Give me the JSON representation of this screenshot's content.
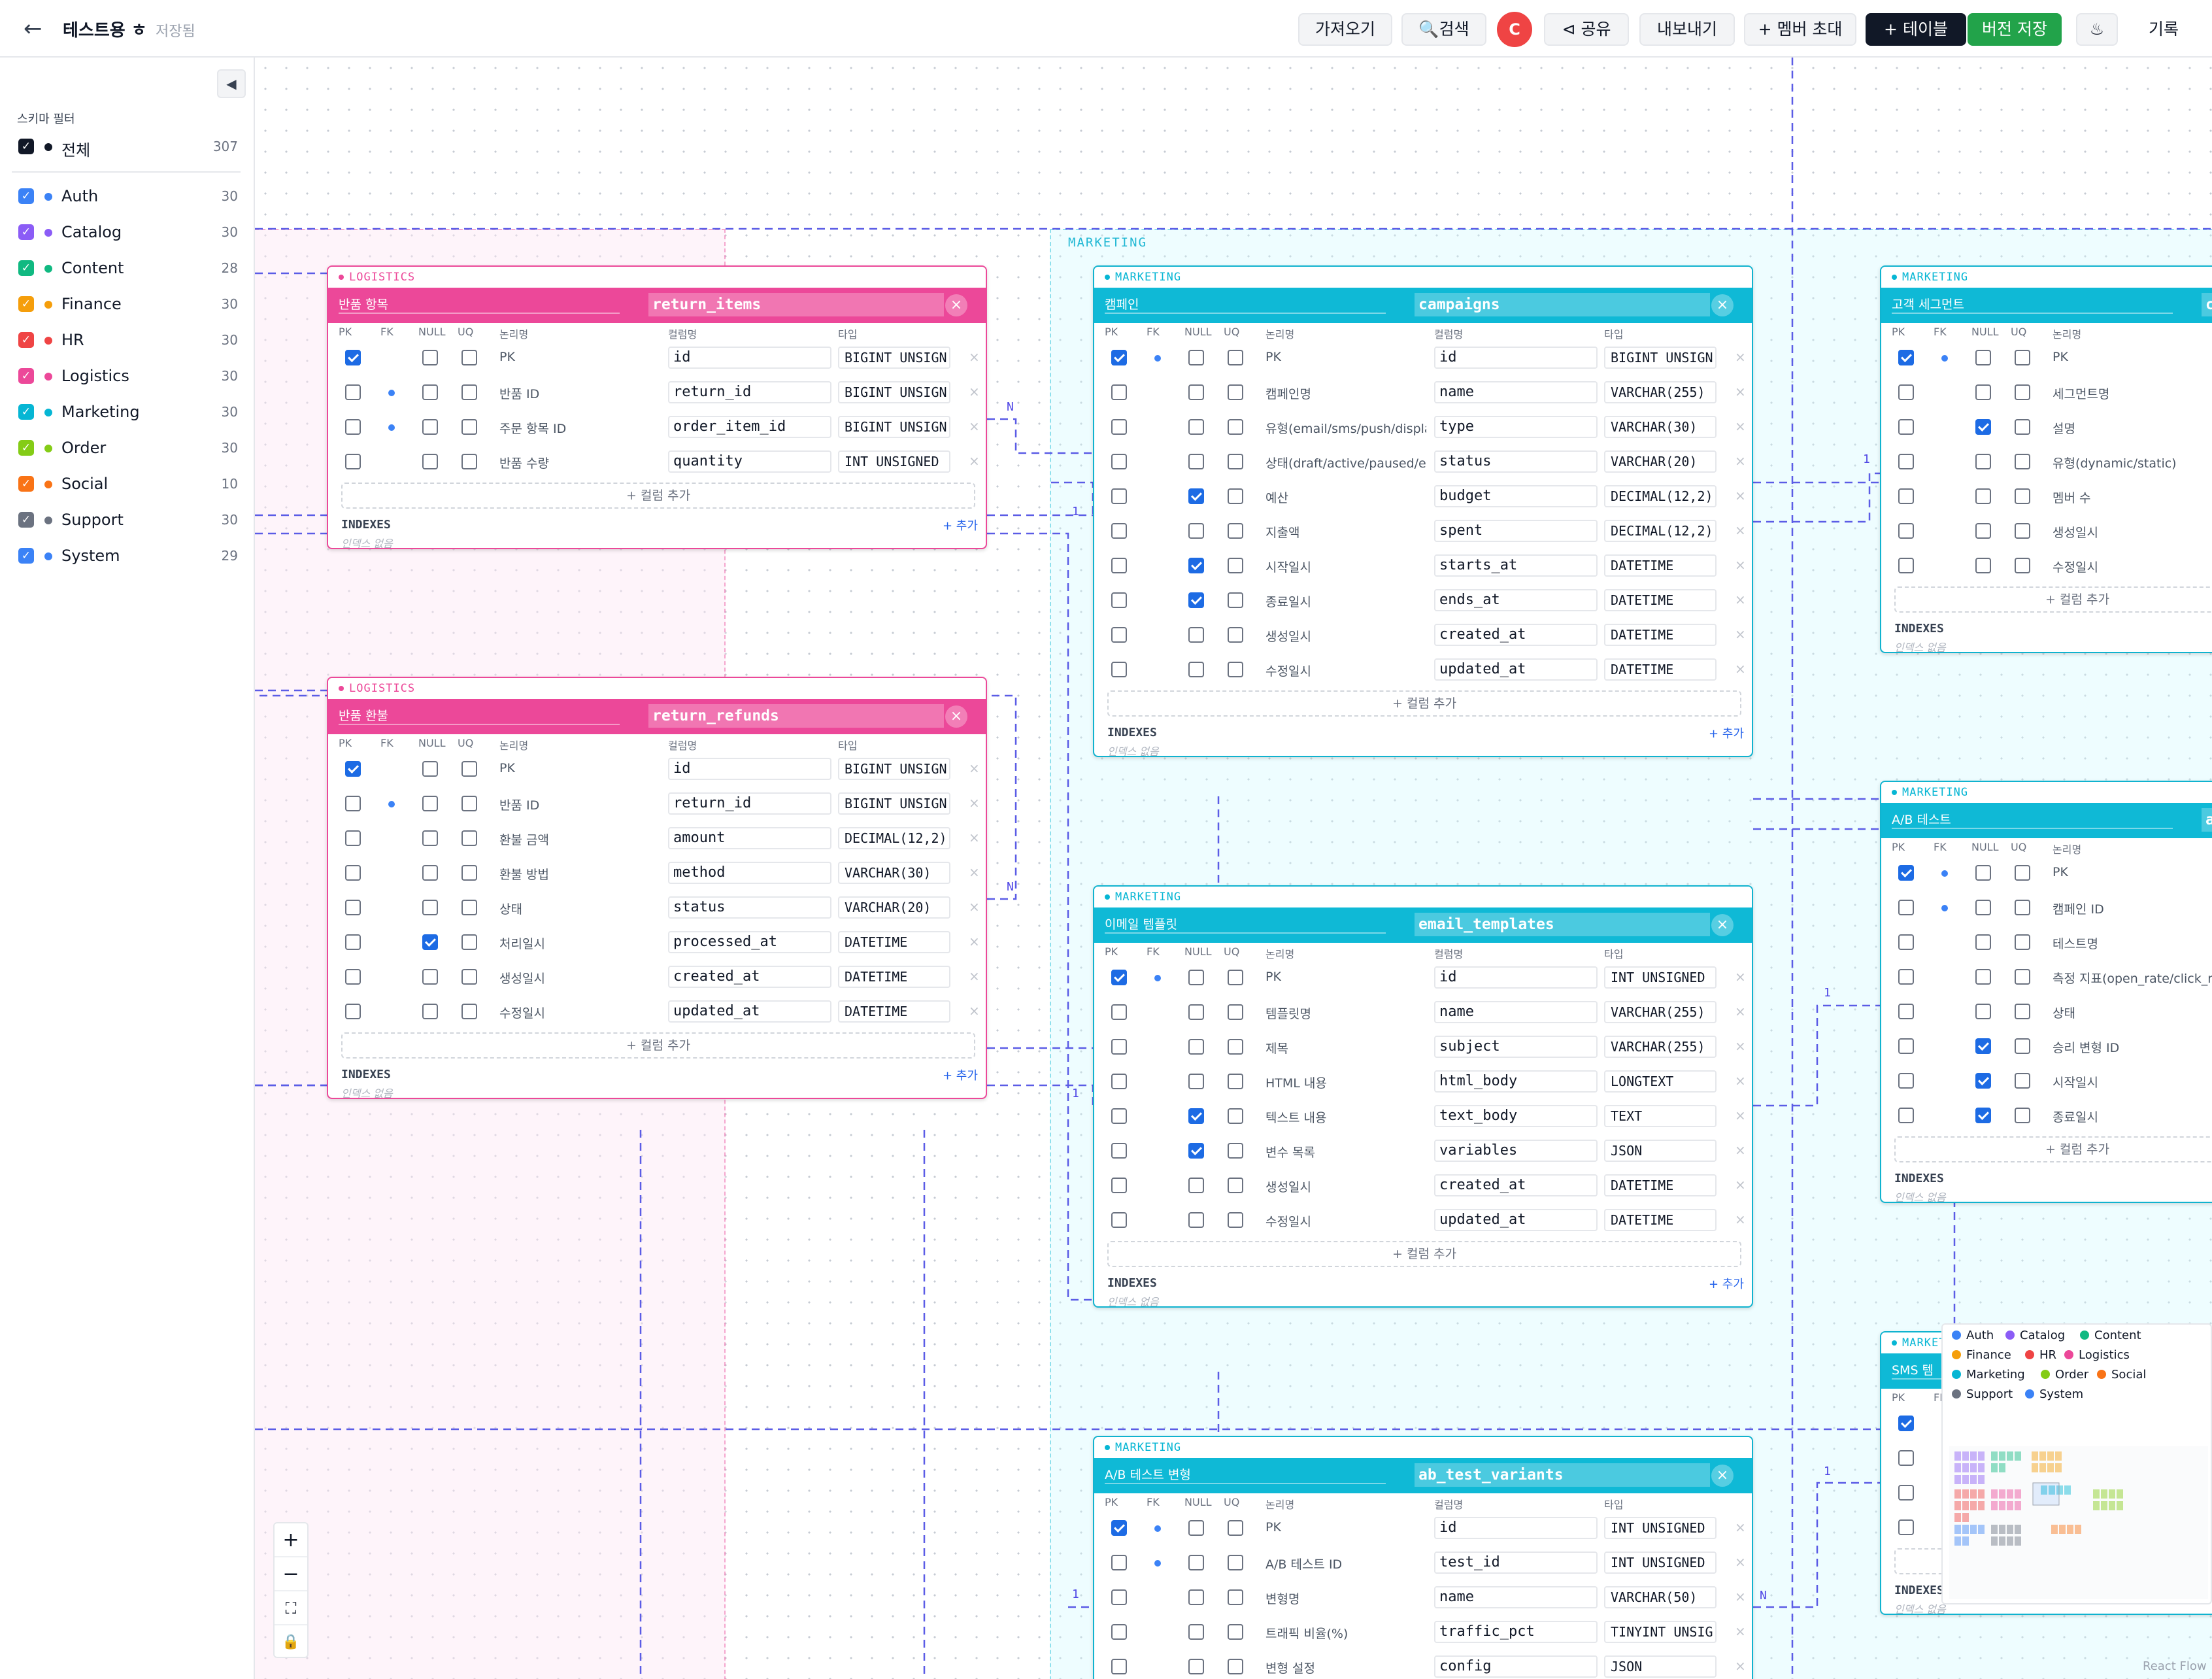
{
  "header": {
    "title": "테스트용",
    "title_suffix": "ㅎ",
    "status": "저장됨",
    "buttons": {
      "import": "가져오기",
      "search": "검색",
      "avatar": "C",
      "share": "공유",
      "export": "내보내기",
      "invite": "+ 멤버 초대",
      "add_table": "+ 테이블",
      "save_version": "버전 저장",
      "history": "기록"
    }
  },
  "sidebar": {
    "title": "스키마 필터",
    "all": {
      "label": "전체",
      "count": "307"
    },
    "items": [
      {
        "label": "Auth",
        "count": "30",
        "color": "#3b82f6"
      },
      {
        "label": "Catalog",
        "count": "30",
        "color": "#8b5cf6"
      },
      {
        "label": "Content",
        "count": "28",
        "color": "#10b981"
      },
      {
        "label": "Finance",
        "count": "30",
        "color": "#f59e0b"
      },
      {
        "label": "HR",
        "count": "30",
        "color": "#ef4444"
      },
      {
        "label": "Logistics",
        "count": "30",
        "color": "#ec4899"
      },
      {
        "label": "Marketing",
        "count": "30",
        "color": "#06b6d4"
      },
      {
        "label": "Order",
        "count": "30",
        "color": "#84cc16"
      },
      {
        "label": "Social",
        "count": "10",
        "color": "#f97316"
      },
      {
        "label": "Support",
        "count": "30",
        "color": "#6b7280"
      },
      {
        "label": "System",
        "count": "29",
        "color": "#3b82f6"
      }
    ]
  },
  "canvas": {
    "group_marketing": "MARKETING",
    "col_headers": {
      "pk": "PK",
      "fk": "FK",
      "null": "NULL",
      "uq": "UQ",
      "logical": "논리명",
      "physical": "컬럼명",
      "type": "타입"
    },
    "add_column": "+ 컬럼 추가",
    "indexes": "INDEXES",
    "index_add": "+ 추가",
    "index_none": "인덱스 없음",
    "rel_one": "1",
    "rel_many": "N",
    "tables": [
      {
        "id": "return_items",
        "schema": "LOGISTICS",
        "logical": "반품 항목",
        "name": "return_items",
        "columns": [
          {
            "pk": true,
            "fk": false,
            "nul": false,
            "uq": false,
            "logical": "PK",
            "name": "id",
            "type": "BIGINT UNSIGN"
          },
          {
            "pk": false,
            "fk": true,
            "nul": false,
            "uq": false,
            "logical": "반품 ID",
            "name": "return_id",
            "type": "BIGINT UNSIGN"
          },
          {
            "pk": false,
            "fk": true,
            "nul": false,
            "uq": false,
            "logical": "주문 항목 ID",
            "name": "order_item_id",
            "type": "BIGINT UNSIGN"
          },
          {
            "pk": false,
            "fk": false,
            "nul": false,
            "uq": false,
            "logical": "반품 수량",
            "name": "quantity",
            "type": "INT UNSIGNED"
          }
        ]
      },
      {
        "id": "return_refunds",
        "schema": "LOGISTICS",
        "logical": "반품 환불",
        "name": "return_refunds",
        "columns": [
          {
            "pk": true,
            "fk": false,
            "nul": false,
            "uq": false,
            "logical": "PK",
            "name": "id",
            "type": "BIGINT UNSIGN"
          },
          {
            "pk": false,
            "fk": true,
            "nul": false,
            "uq": false,
            "logical": "반품 ID",
            "name": "return_id",
            "type": "BIGINT UNSIGN"
          },
          {
            "pk": false,
            "fk": false,
            "nul": false,
            "uq": false,
            "logical": "환불 금액",
            "name": "amount",
            "type": "DECIMAL(12,2)"
          },
          {
            "pk": false,
            "fk": false,
            "nul": false,
            "uq": false,
            "logical": "환불 방법",
            "name": "method",
            "type": "VARCHAR(30)"
          },
          {
            "pk": false,
            "fk": false,
            "nul": false,
            "uq": false,
            "logical": "상태",
            "name": "status",
            "type": "VARCHAR(20)"
          },
          {
            "pk": false,
            "fk": false,
            "nul": true,
            "uq": false,
            "logical": "처리일시",
            "name": "processed_at",
            "type": "DATETIME"
          },
          {
            "pk": false,
            "fk": false,
            "nul": false,
            "uq": false,
            "logical": "생성일시",
            "name": "created_at",
            "type": "DATETIME"
          },
          {
            "pk": false,
            "fk": false,
            "nul": false,
            "uq": false,
            "logical": "수정일시",
            "name": "updated_at",
            "type": "DATETIME"
          }
        ]
      },
      {
        "id": "campaigns",
        "schema": "MARKETING",
        "logical": "캠페인",
        "name": "campaigns",
        "columns": [
          {
            "pk": true,
            "fk": true,
            "nul": false,
            "uq": false,
            "logical": "PK",
            "name": "id",
            "type": "BIGINT UNSIGN"
          },
          {
            "pk": false,
            "fk": false,
            "nul": false,
            "uq": false,
            "logical": "캠페인명",
            "name": "name",
            "type": "VARCHAR(255)"
          },
          {
            "pk": false,
            "fk": false,
            "nul": false,
            "uq": false,
            "logical": "유형(email/sms/push/displa",
            "name": "type",
            "type": "VARCHAR(30)"
          },
          {
            "pk": false,
            "fk": false,
            "nul": false,
            "uq": false,
            "logical": "상태(draft/active/paused/er",
            "name": "status",
            "type": "VARCHAR(20)"
          },
          {
            "pk": false,
            "fk": false,
            "nul": true,
            "uq": false,
            "logical": "예산",
            "name": "budget",
            "type": "DECIMAL(12,2)"
          },
          {
            "pk": false,
            "fk": false,
            "nul": false,
            "uq": false,
            "logical": "지출액",
            "name": "spent",
            "type": "DECIMAL(12,2)"
          },
          {
            "pk": false,
            "fk": false,
            "nul": true,
            "uq": false,
            "logical": "시작일시",
            "name": "starts_at",
            "type": "DATETIME"
          },
          {
            "pk": false,
            "fk": false,
            "nul": true,
            "uq": false,
            "logical": "종료일시",
            "name": "ends_at",
            "type": "DATETIME"
          },
          {
            "pk": false,
            "fk": false,
            "nul": false,
            "uq": false,
            "logical": "생성일시",
            "name": "created_at",
            "type": "DATETIME"
          },
          {
            "pk": false,
            "fk": false,
            "nul": false,
            "uq": false,
            "logical": "수정일시",
            "name": "updated_at",
            "type": "DATETIME"
          }
        ]
      },
      {
        "id": "email_templates",
        "schema": "MARKETING",
        "logical": "이메일 템플릿",
        "name": "email_templates",
        "columns": [
          {
            "pk": true,
            "fk": true,
            "nul": false,
            "uq": false,
            "logical": "PK",
            "name": "id",
            "type": "INT UNSIGNED"
          },
          {
            "pk": false,
            "fk": false,
            "nul": false,
            "uq": false,
            "logical": "템플릿명",
            "name": "name",
            "type": "VARCHAR(255)"
          },
          {
            "pk": false,
            "fk": false,
            "nul": false,
            "uq": false,
            "logical": "제목",
            "name": "subject",
            "type": "VARCHAR(255)"
          },
          {
            "pk": false,
            "fk": false,
            "nul": false,
            "uq": false,
            "logical": "HTML 내용",
            "name": "html_body",
            "type": "LONGTEXT"
          },
          {
            "pk": false,
            "fk": false,
            "nul": true,
            "uq": false,
            "logical": "텍스트 내용",
            "name": "text_body",
            "type": "TEXT"
          },
          {
            "pk": false,
            "fk": false,
            "nul": true,
            "uq": false,
            "logical": "변수 목록",
            "name": "variables",
            "type": "JSON"
          },
          {
            "pk": false,
            "fk": false,
            "nul": false,
            "uq": false,
            "logical": "생성일시",
            "name": "created_at",
            "type": "DATETIME"
          },
          {
            "pk": false,
            "fk": false,
            "nul": false,
            "uq": false,
            "logical": "수정일시",
            "name": "updated_at",
            "type": "DATETIME"
          }
        ]
      },
      {
        "id": "ab_test_variants",
        "schema": "MARKETING",
        "logical": "A/B 테스트 변형",
        "name": "ab_test_variants",
        "columns": [
          {
            "pk": true,
            "fk": true,
            "nul": false,
            "uq": false,
            "logical": "PK",
            "name": "id",
            "type": "INT UNSIGNED"
          },
          {
            "pk": false,
            "fk": true,
            "nul": false,
            "uq": false,
            "logical": "A/B 테스트 ID",
            "name": "test_id",
            "type": "INT UNSIGNED"
          },
          {
            "pk": false,
            "fk": false,
            "nul": false,
            "uq": false,
            "logical": "변형명",
            "name": "name",
            "type": "VARCHAR(50)"
          },
          {
            "pk": false,
            "fk": false,
            "nul": false,
            "uq": false,
            "logical": "트래픽 비율(%)",
            "name": "traffic_pct",
            "type": "TINYINT UNSIG"
          },
          {
            "pk": false,
            "fk": false,
            "nul": false,
            "uq": false,
            "logical": "변형 설정",
            "name": "config",
            "type": "JSON"
          }
        ]
      },
      {
        "id": "customer_segments",
        "schema": "MARKETING",
        "logical": "고객 세그먼트",
        "name": "c",
        "columns": [
          {
            "pk": true,
            "fk": true,
            "nul": false,
            "uq": false,
            "logical": "PK"
          },
          {
            "pk": false,
            "fk": false,
            "nul": false,
            "uq": false,
            "logical": "세그먼트명"
          },
          {
            "pk": false,
            "fk": false,
            "nul": true,
            "uq": false,
            "logical": "설명"
          },
          {
            "pk": false,
            "fk": false,
            "nul": false,
            "uq": false,
            "logical": "유형(dynamic/static)"
          },
          {
            "pk": false,
            "fk": false,
            "nul": false,
            "uq": false,
            "logical": "멤버 수"
          },
          {
            "pk": false,
            "fk": false,
            "nul": false,
            "uq": false,
            "logical": "생성일시"
          },
          {
            "pk": false,
            "fk": false,
            "nul": false,
            "uq": false,
            "logical": "수정일시"
          }
        ]
      },
      {
        "id": "ab_tests",
        "schema": "MARKETING",
        "logical": "A/B 테스트",
        "name": "a",
        "columns": [
          {
            "pk": true,
            "fk": true,
            "nul": false,
            "uq": false,
            "logical": "PK"
          },
          {
            "pk": false,
            "fk": true,
            "nul": false,
            "uq": false,
            "logical": "캠페인 ID"
          },
          {
            "pk": false,
            "fk": false,
            "nul": false,
            "uq": false,
            "logical": "테스트명"
          },
          {
            "pk": false,
            "fk": false,
            "nul": false,
            "uq": false,
            "logical": "측정 지표(open_rate/click_ra"
          },
          {
            "pk": false,
            "fk": false,
            "nul": false,
            "uq": false,
            "logical": "상태"
          },
          {
            "pk": false,
            "fk": false,
            "nul": true,
            "uq": false,
            "logical": "승리 변형 ID"
          },
          {
            "pk": false,
            "fk": false,
            "nul": true,
            "uq": false,
            "logical": "시작일시"
          },
          {
            "pk": false,
            "fk": false,
            "nul": true,
            "uq": false,
            "logical": "종료일시"
          }
        ]
      },
      {
        "id": "sms_templates",
        "schema": "MARKETING",
        "logical": "SMS 템",
        "name": "s",
        "columns": [
          {
            "pk": true,
            "fk": false,
            "nul": false,
            "uq": false,
            "logical": ""
          },
          {
            "pk": false,
            "fk": false,
            "nul": false,
            "uq": false,
            "logical": ""
          },
          {
            "pk": false,
            "fk": false,
            "nul": false,
            "uq": false,
            "logical": ""
          },
          {
            "pk": false,
            "fk": false,
            "nul": false,
            "uq": false,
            "logical": ""
          }
        ]
      }
    ]
  },
  "minimap": {
    "legend": [
      {
        "label": "Auth",
        "color": "#3b82f6"
      },
      {
        "label": "Catalog",
        "color": "#8b5cf6"
      },
      {
        "label": "Content",
        "color": "#10b981"
      },
      {
        "label": "Finance",
        "color": "#f59e0b"
      },
      {
        "label": "HR",
        "color": "#ef4444"
      },
      {
        "label": "Logistics",
        "color": "#ec4899"
      },
      {
        "label": "Marketing",
        "color": "#06b6d4"
      },
      {
        "label": "Order",
        "color": "#84cc16"
      },
      {
        "label": "Social",
        "color": "#f97316"
      },
      {
        "label": "Support",
        "color": "#6b7280"
      },
      {
        "label": "System",
        "color": "#3b82f6"
      }
    ]
  },
  "attribution": "React Flow"
}
